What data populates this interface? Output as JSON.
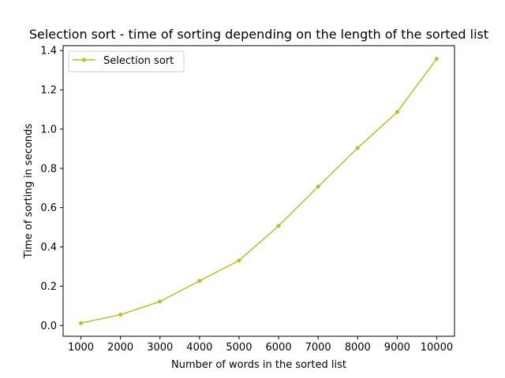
{
  "chart_data": {
    "type": "line",
    "title": "Selection sort - time of sorting depending on the length of the sorted list",
    "xlabel": "Number of words in the sorted list",
    "ylabel": "Time of sorting in seconds",
    "x": [
      1000,
      2000,
      3000,
      4000,
      5000,
      6000,
      7000,
      8000,
      9000,
      10000
    ],
    "xticks": [
      "1000",
      "2000",
      "3000",
      "4000",
      "5000",
      "6000",
      "7000",
      "8000",
      "9000",
      "10000"
    ],
    "yticks": [
      "0.0",
      "0.2",
      "0.4",
      "0.6",
      "0.8",
      "1.0",
      "1.2",
      "1.4"
    ],
    "ylim": [
      -0.055,
      1.425
    ],
    "xlim": [
      550,
      10450
    ],
    "grid": false,
    "legend_position": "upper-left",
    "series": [
      {
        "name": "Selection sort",
        "color": "#bcbd22",
        "marker": "circle",
        "values": [
          0.012,
          0.055,
          0.122,
          0.227,
          0.331,
          0.507,
          0.707,
          0.904,
          1.087,
          1.358
        ]
      }
    ]
  }
}
